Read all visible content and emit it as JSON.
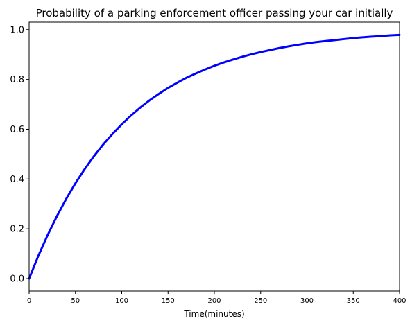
{
  "chart_data": {
    "type": "line",
    "title": "Probability of a parking enforcement officer passing your car initially",
    "xlabel": "Time(minutes)",
    "ylabel": "",
    "xlim": [
      0,
      400
    ],
    "ylim": [
      -0.05,
      1.03
    ],
    "x_ticks": [
      0,
      50,
      100,
      150,
      200,
      250,
      300,
      350,
      400
    ],
    "x_tick_labels": [
      "0",
      "50",
      "100",
      "150",
      "200",
      "250",
      "300",
      "350",
      "400"
    ],
    "y_ticks": [
      0.0,
      0.2,
      0.4,
      0.6,
      0.8,
      1.0
    ],
    "y_tick_labels": [
      "0.0",
      "0.2",
      "0.4",
      "0.6",
      "0.8",
      "1.0"
    ],
    "grid": false,
    "series": [
      {
        "color": "#0000ff",
        "x": [
          0,
          10,
          20,
          30,
          40,
          50,
          60,
          70,
          80,
          90,
          100,
          110,
          120,
          130,
          140,
          150,
          160,
          170,
          180,
          190,
          200,
          210,
          220,
          230,
          240,
          250,
          260,
          270,
          280,
          290,
          300,
          310,
          320,
          330,
          340,
          350,
          360,
          370,
          380,
          390,
          400
        ],
        "y": [
          0.0,
          0.092,
          0.175,
          0.251,
          0.32,
          0.383,
          0.44,
          0.492,
          0.539,
          0.581,
          0.62,
          0.655,
          0.687,
          0.716,
          0.742,
          0.766,
          0.787,
          0.807,
          0.824,
          0.84,
          0.855,
          0.868,
          0.88,
          0.891,
          0.901,
          0.91,
          0.918,
          0.926,
          0.933,
          0.939,
          0.945,
          0.95,
          0.954,
          0.958,
          0.962,
          0.966,
          0.969,
          0.972,
          0.974,
          0.977,
          0.979
        ]
      }
    ]
  }
}
